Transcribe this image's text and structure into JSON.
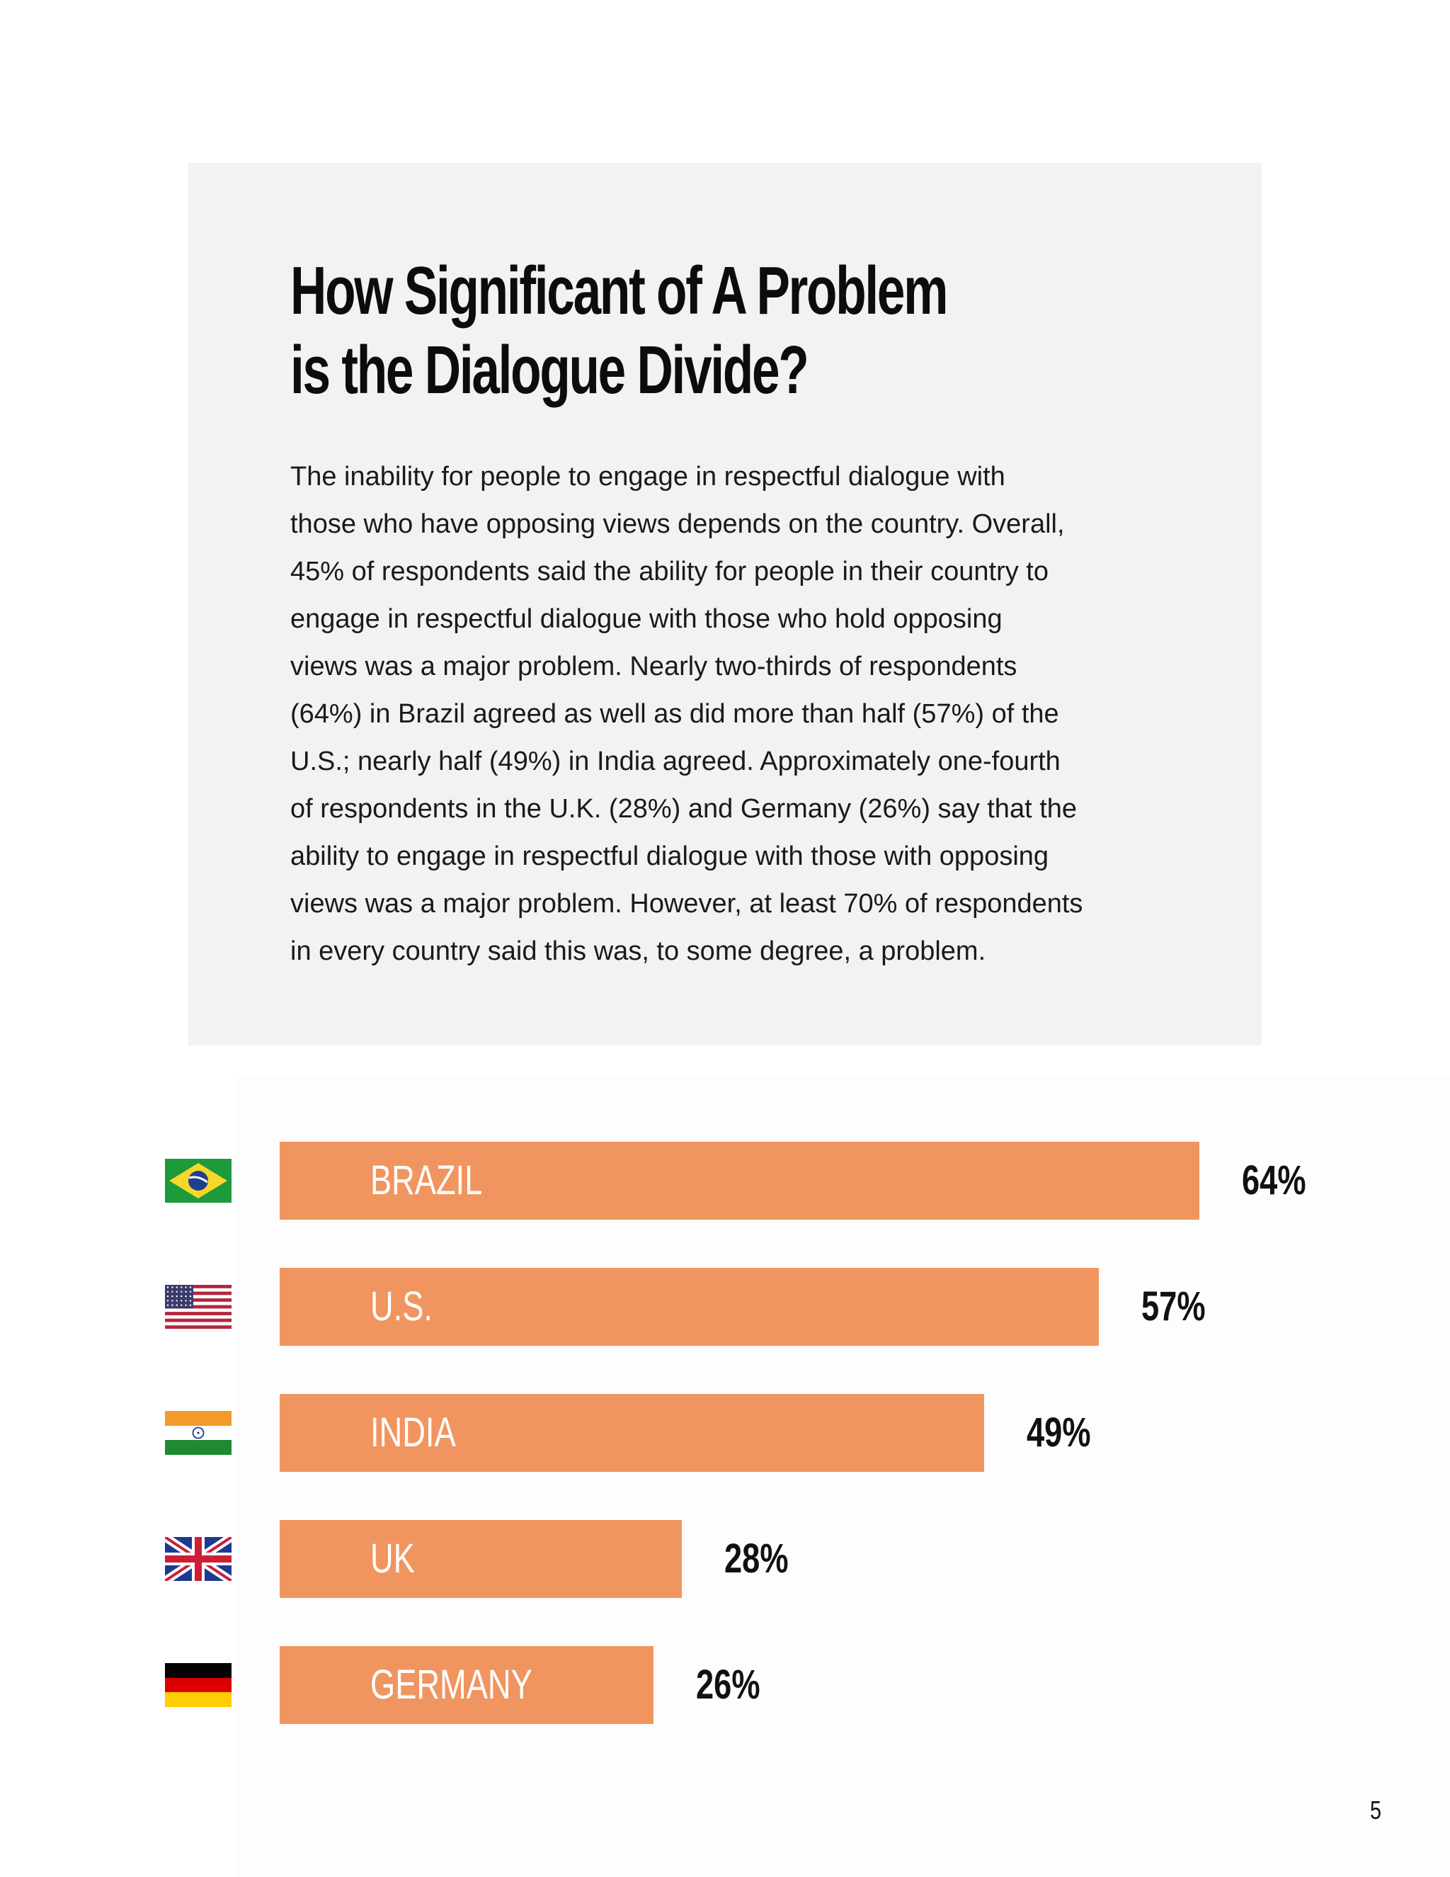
{
  "intro": {
    "title_lines": [
      "How Significant of A Problem",
      "is the Dialogue Divide?"
    ],
    "body_lines": [
      "The inability for people to engage in respectful dialogue with",
      "those who have opposing views depends on the country. Overall,",
      "45% of respondents said the ability for people in their country to",
      "engage in respectful dialogue with those who hold opposing",
      "views was a major problem. Nearly two-thirds of respondents",
      "(64%) in Brazil agreed as well as did more than half (57%) of the",
      "U.S.; nearly half (49%) in India agreed. Approximately one-fourth",
      "of respondents in the U.K. (28%) and Germany (26%) say that the",
      "ability to engage in respectful dialogue with those with opposing",
      "views was a major problem. However, at least 70% of respondents",
      "in every country said this was, to some degree, a problem."
    ]
  },
  "chart_data": {
    "type": "bar",
    "orientation": "horizontal",
    "categories": [
      "BRAZIL",
      "U.S.",
      "INDIA",
      "UK",
      "GERMANY"
    ],
    "values": [
      64,
      57,
      49,
      28,
      26
    ],
    "value_labels": [
      "64%",
      "57%",
      "49%",
      "28%",
      "26%"
    ],
    "flag_icons": [
      "brazil-flag-icon",
      "us-flag-icon",
      "india-flag-icon",
      "uk-flag-icon",
      "germany-flag-icon"
    ],
    "bar_color": "#f0955f",
    "label_color": "#ffffff",
    "legend": "none",
    "grid": false
  },
  "page": {
    "number": "5"
  },
  "colors": {
    "intro_background": "#f2f2f2",
    "text": "#111111"
  }
}
